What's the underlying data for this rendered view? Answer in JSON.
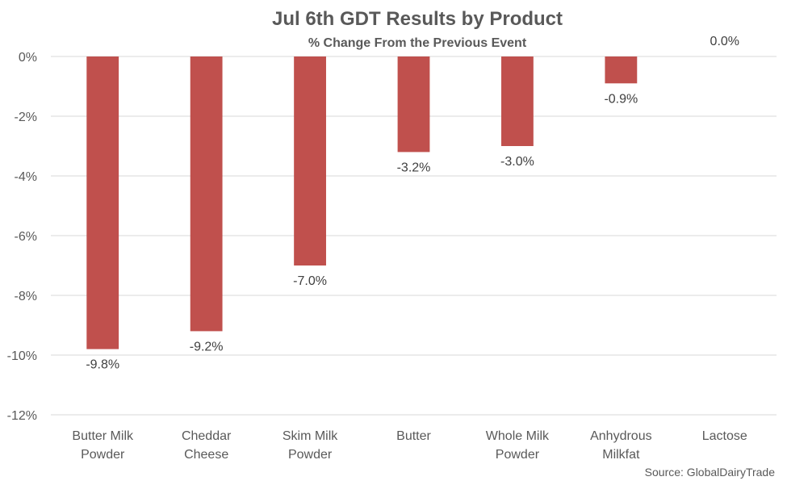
{
  "chart_data": {
    "type": "bar",
    "title": "Jul 6th GDT Results by Product",
    "subtitle": "% Change From the Previous Event",
    "categories": [
      [
        "Butter Milk",
        "Powder"
      ],
      [
        "Cheddar",
        "Cheese"
      ],
      [
        "Skim Milk",
        "Powder"
      ],
      [
        "Butter"
      ],
      [
        "Whole Milk",
        "Powder"
      ],
      [
        "Anhydrous",
        "Milkfat"
      ],
      [
        "Lactose"
      ]
    ],
    "values": [
      -9.8,
      -9.2,
      -7.0,
      -3.2,
      -3.0,
      -0.9,
      0.0
    ],
    "data_labels": [
      "-9.8%",
      "-9.2%",
      "-7.0%",
      "-3.2%",
      "-3.0%",
      "-0.9%",
      "0.0%"
    ],
    "ylim": [
      -12,
      0
    ],
    "yticks": [
      0,
      -2,
      -4,
      -6,
      -8,
      -10,
      -12
    ],
    "ytick_labels": [
      "0%",
      "-2%",
      "-4%",
      "-6%",
      "-8%",
      "-10%",
      "-12%"
    ],
    "grid": true,
    "bar_color": "#c0504d",
    "grid_color": "#d9d9d9",
    "source": "Source: GlobalDairyTrade"
  }
}
